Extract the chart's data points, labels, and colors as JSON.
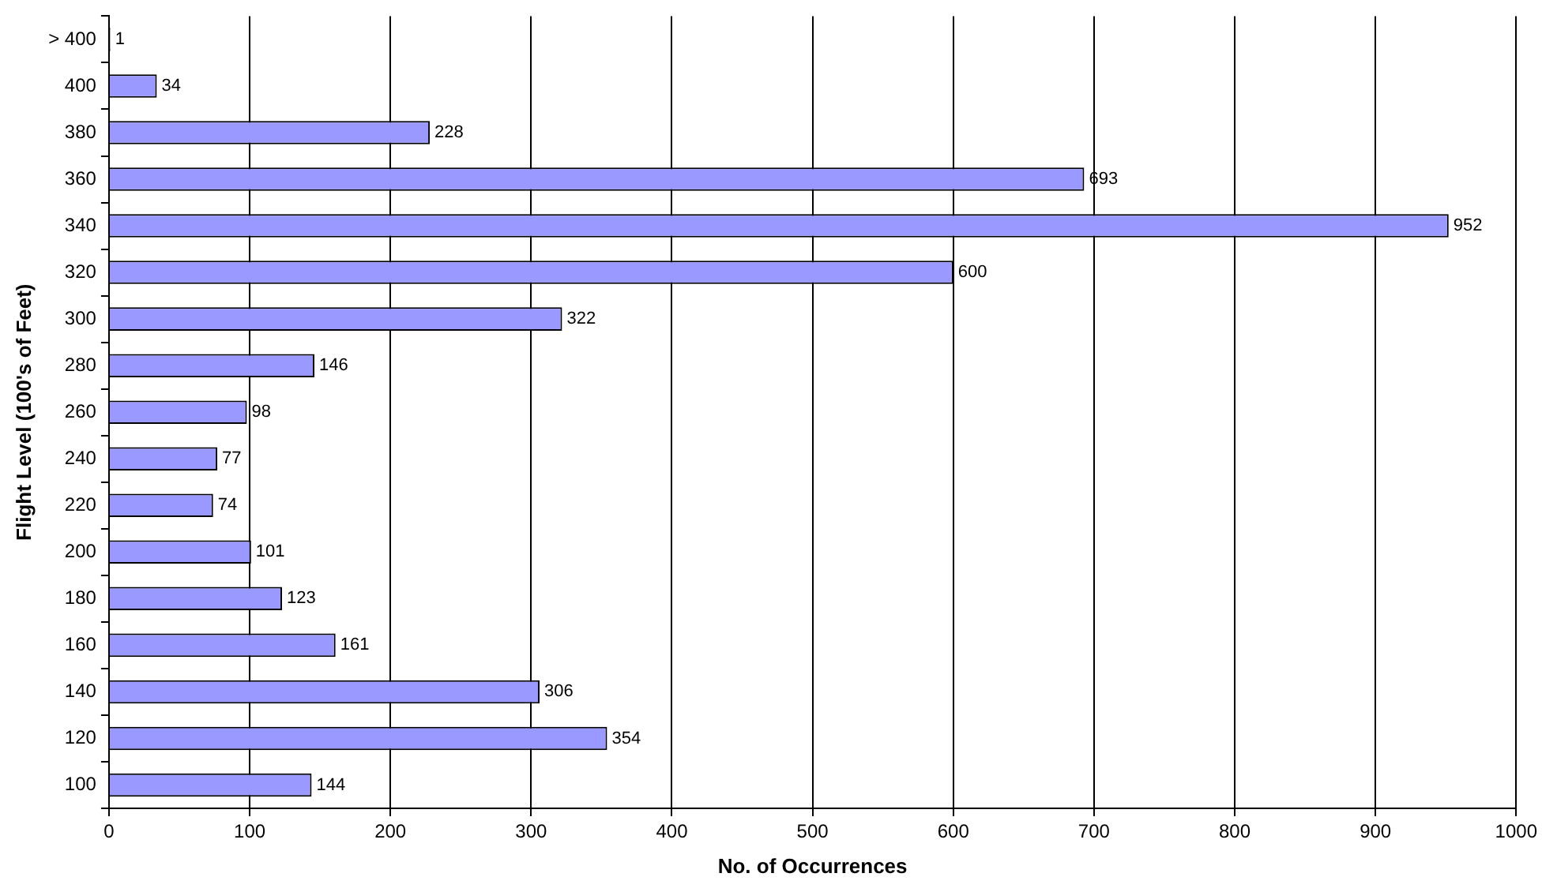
{
  "chart_data": {
    "type": "bar",
    "orientation": "horizontal",
    "xlabel": "No. of Occurrences",
    "ylabel": "Flight Level (100's of Feet)",
    "categories": [
      "> 400",
      "400",
      "380",
      "360",
      "340",
      "320",
      "300",
      "280",
      "260",
      "240",
      "220",
      "200",
      "180",
      "160",
      "140",
      "120",
      "100"
    ],
    "values": [
      1,
      34,
      228,
      693,
      952,
      600,
      322,
      146,
      98,
      77,
      74,
      101,
      123,
      161,
      306,
      354,
      144
    ],
    "color": "#9999ff",
    "xlim": [
      0,
      1000
    ],
    "xticks": [
      0,
      100,
      200,
      300,
      400,
      500,
      600,
      700,
      800,
      900,
      1000
    ],
    "grid": "x",
    "legend": false,
    "data_labels": true
  }
}
